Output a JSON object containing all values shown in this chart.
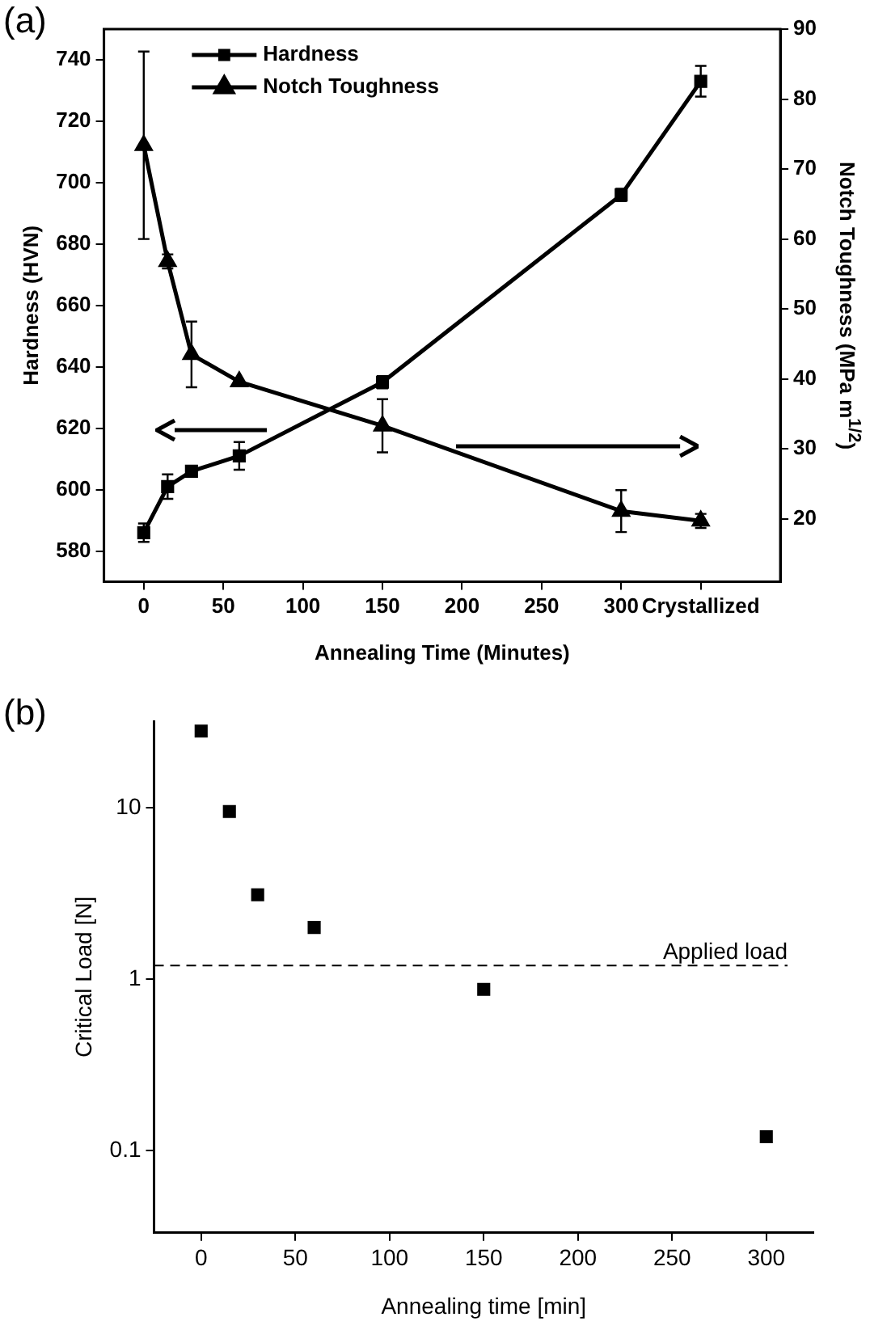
{
  "chart_data": [
    {
      "type": "line",
      "xlabel": "Annealing Time (Minutes)",
      "ylabel": "Hardness (HVN)",
      "y2label": "Notch Toughness (MPa m$^{1/2}$)",
      "annotations": [
        "(a)"
      ],
      "xlim": [
        -25,
        400
      ],
      "xticks": [
        0,
        50,
        100,
        150,
        200,
        250,
        300,
        {
          "value": 350,
          "label": "Crystallized"
        }
      ],
      "ylim": [
        570,
        750
      ],
      "yticks": [
        580,
        600,
        620,
        640,
        660,
        680,
        700,
        720,
        740
      ],
      "y2lim": [
        11,
        90
      ],
      "y2ticks": [
        20,
        30,
        40,
        50,
        60,
        70,
        80,
        90
      ],
      "grid": false,
      "legend": "top left",
      "series": [
        {
          "name": "Hardness",
          "color": "#000000",
          "marker": "square",
          "axis": "y",
          "x": [
            0,
            15,
            30,
            60,
            150,
            300,
            350
          ],
          "values": [
            586,
            601,
            606,
            611,
            635,
            696,
            733
          ],
          "errors": [
            3,
            4,
            1,
            4.5,
            2,
            2,
            5
          ]
        },
        {
          "name": "Notch Toughness",
          "color": "#000000",
          "marker": "triangle",
          "axis": "y2",
          "x": [
            0,
            15,
            30,
            60,
            150,
            300,
            350
          ],
          "values": [
            73.4,
            56.8,
            43.5,
            39.6,
            33.3,
            21.1,
            19.7
          ],
          "errors": [
            13.4,
            1,
            4.7,
            null,
            3.8,
            3,
            1
          ]
        }
      ]
    },
    {
      "type": "scatter",
      "xlabel": "Annealing time [min]",
      "ylabel": "Critical Load [N]",
      "annotations": [
        "(b)"
      ],
      "log": "y",
      "xlim": [
        -25,
        325
      ],
      "xticks": [
        0,
        50,
        100,
        150,
        200,
        250,
        300
      ],
      "ylim": [
        0.033,
        32
      ],
      "yticks": [
        0.1,
        1,
        10
      ],
      "grid": false,
      "legend": false,
      "marker": "square",
      "x": [
        0,
        15,
        30,
        60,
        150,
        300
      ],
      "series": [
        {
          "color": "#000000",
          "values": [
            28,
            9.5,
            3.1,
            2.0,
            0.87,
            0.12
          ]
        }
      ],
      "ref_lines": [
        {
          "axis": "y",
          "value": 1.2,
          "label": "Applied load",
          "line_style": "dashed",
          "color": "#000000"
        }
      ]
    }
  ]
}
